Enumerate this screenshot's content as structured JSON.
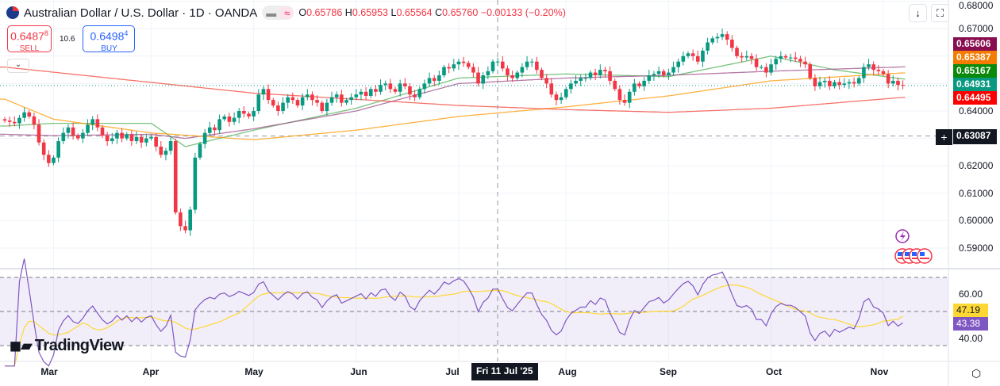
{
  "header": {
    "title": "Australian Dollar / U.S. Dollar · 1D · OANDA",
    "open_label": "O",
    "open": "0.65786",
    "high_label": "H",
    "high": "0.65953",
    "low_label": "L",
    "low": "0.65564",
    "close_label": "C",
    "close": "0.65760",
    "change": "−0.00133 (−0.20%)",
    "pill_icons": [
      "minus-icon",
      "wave-icon"
    ]
  },
  "trade": {
    "sell_price": "0.6487",
    "sell_sup": "8",
    "sell_label": "SELL",
    "spread": "10.6",
    "buy_price": "0.6498",
    "buy_sup": "4",
    "buy_label": "BUY"
  },
  "toolbar": {
    "download": "↓",
    "fullscreen": "⛶"
  },
  "price_axis": {
    "ticks": [
      "0.68000",
      "0.67000",
      "0.64000",
      "0.62000",
      "0.61000",
      "0.60000",
      "0.59000"
    ],
    "hline": "0.63087",
    "badges": [
      {
        "text": "0.65606",
        "color": "#880e4f"
      },
      {
        "text": "0.65387",
        "color": "#f57c00"
      },
      {
        "text": "0.65167",
        "color": "#0a8a0a"
      },
      {
        "text": "0.64931",
        "color": "#089981"
      },
      {
        "text": "0.64495",
        "color": "#ff0000"
      }
    ]
  },
  "rsi_axis": {
    "ticks": [
      "60.00",
      "40.00"
    ],
    "ma_value": "47.19",
    "rsi_value": "43.38",
    "ma_color": "#fdd835",
    "rsi_color": "#7e57c2"
  },
  "time_axis": {
    "labels": [
      "Mar",
      "Apr",
      "May",
      "Jun",
      "Jul",
      "Aug",
      "Sep",
      "Oct",
      "Nov"
    ],
    "crosshair": "Fri 11 Jul '25"
  },
  "logo": "TradingView",
  "colors": {
    "up": "#089981",
    "down": "#f23645"
  },
  "chart_data": {
    "type": "candlestick",
    "month_index": [
      10,
      30,
      51,
      72,
      93,
      115,
      136,
      157,
      180
    ],
    "closes": [
      0.6365,
      0.636,
      0.6355,
      0.6375,
      0.6395,
      0.638,
      0.635,
      0.6285,
      0.624,
      0.621,
      0.623,
      0.629,
      0.632,
      0.634,
      0.631,
      0.63,
      0.632,
      0.635,
      0.637,
      0.634,
      0.631,
      0.629,
      0.63,
      0.632,
      0.63,
      0.6315,
      0.629,
      0.6305,
      0.6285,
      0.63,
      0.6305,
      0.627,
      0.624,
      0.6255,
      0.629,
      0.603,
      0.598,
      0.5965,
      0.604,
      0.623,
      0.628,
      0.632,
      0.634,
      0.633,
      0.637,
      0.638,
      0.636,
      0.6375,
      0.64,
      0.639,
      0.638,
      0.64,
      0.646,
      0.648,
      0.644,
      0.642,
      0.64,
      0.643,
      0.645,
      0.644,
      0.642,
      0.645,
      0.646,
      0.644,
      0.643,
      0.64,
      0.643,
      0.645,
      0.646,
      0.643,
      0.644,
      0.645,
      0.646,
      0.647,
      0.6455,
      0.648,
      0.647,
      0.6495,
      0.65,
      0.648,
      0.647,
      0.65,
      0.649,
      0.646,
      0.645,
      0.648,
      0.65,
      0.652,
      0.651,
      0.653,
      0.656,
      0.6555,
      0.657,
      0.658,
      0.6575,
      0.656,
      0.654,
      0.65,
      0.653,
      0.6545,
      0.658,
      0.658,
      0.6555,
      0.653,
      0.652,
      0.654,
      0.656,
      0.658,
      0.658,
      0.655,
      0.652,
      0.65,
      0.646,
      0.644,
      0.645,
      0.648,
      0.65,
      0.651,
      0.652,
      0.652,
      0.654,
      0.653,
      0.655,
      0.6545,
      0.651,
      0.648,
      0.644,
      0.643,
      0.647,
      0.65,
      0.649,
      0.651,
      0.653,
      0.6535,
      0.6545,
      0.653,
      0.654,
      0.656,
      0.658,
      0.66,
      0.661,
      0.66,
      0.658,
      0.662,
      0.665,
      0.6665,
      0.667,
      0.668,
      0.666,
      0.663,
      0.66,
      0.6595,
      0.66,
      0.659,
      0.656,
      0.656,
      0.654,
      0.657,
      0.659,
      0.66,
      0.6595,
      0.6595,
      0.659,
      0.658,
      0.657,
      0.652,
      0.649,
      0.6505,
      0.651,
      0.649,
      0.6505,
      0.6495,
      0.65,
      0.6505,
      0.65,
      0.652,
      0.656,
      0.657,
      0.655,
      0.6545,
      0.6535,
      0.65,
      0.651,
      0.6495,
      0.6493
    ],
    "ma_lines": [
      {
        "color": "#4caf50",
        "at_index": [
          0,
          10,
          30,
          37,
          51,
          72,
          93,
          115,
          136,
          157,
          170,
          184
        ],
        "values": [
          0.6345,
          0.6355,
          0.6355,
          0.627,
          0.633,
          0.641,
          0.652,
          0.6535,
          0.6525,
          0.66,
          0.655,
          0.65167
        ]
      },
      {
        "color": "#9c4d8a",
        "at_index": [
          0,
          10,
          30,
          37,
          51,
          72,
          93,
          115,
          136,
          157,
          184
        ],
        "values": [
          0.6315,
          0.631,
          0.6315,
          0.63,
          0.6335,
          0.64,
          0.65,
          0.652,
          0.653,
          0.6545,
          0.65606
        ]
      },
      {
        "color": "#ff9800",
        "at_index": [
          0,
          10,
          30,
          51,
          72,
          93,
          115,
          136,
          157,
          184
        ],
        "values": [
          0.6443,
          0.637,
          0.632,
          0.6295,
          0.633,
          0.638,
          0.6415,
          0.6455,
          0.651,
          0.65387
        ]
      },
      {
        "color": "#f44336",
        "at_index": [
          0,
          51,
          93,
          115,
          136,
          157,
          184
        ],
        "values": [
          0.656,
          0.6465,
          0.642,
          0.6405,
          0.6395,
          0.641,
          0.64495
        ]
      }
    ],
    "hline": 0.63087,
    "rsi": {
      "levels": [
        70,
        50,
        30
      ],
      "last": 43.38,
      "ma_last": 47.19
    }
  }
}
